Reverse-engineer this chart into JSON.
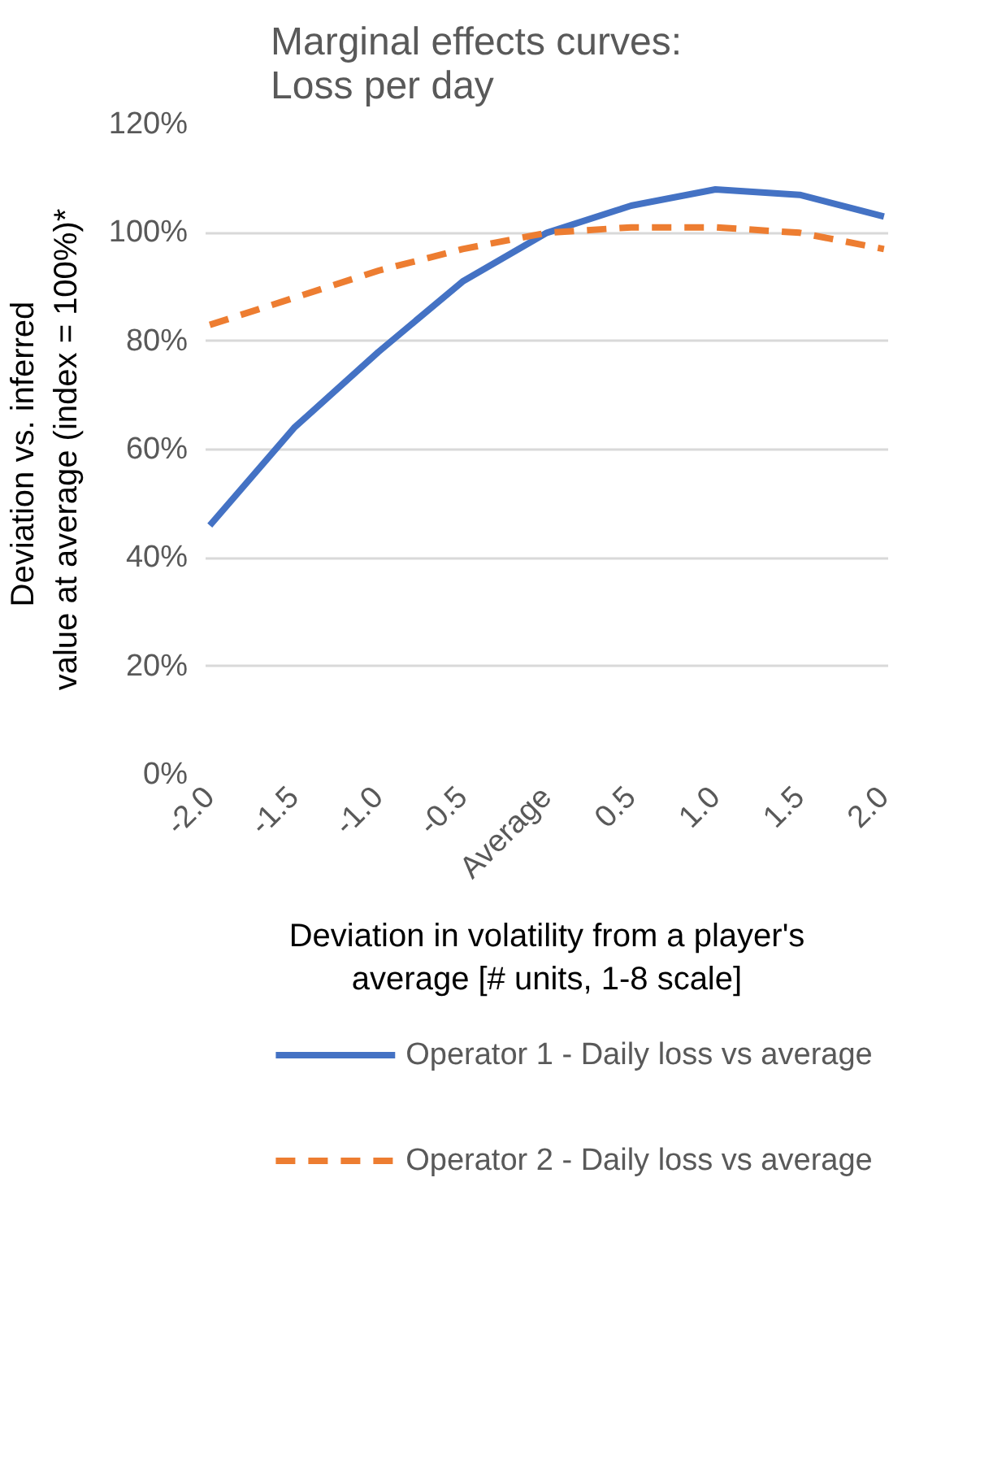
{
  "chart_data": {
    "type": "line",
    "title": "Marginal effects curves:\nLoss per day",
    "xlabel": "Deviation in volatility from a player's\naverage [# units, 1-8 scale]",
    "ylabel": "Deviation  vs. inferred\nvalue at average (index = 100%)*",
    "categories": [
      "-2.0",
      "-1.5",
      "-1.0",
      "-0.5",
      "Average",
      "0.5",
      "1.0",
      "1.5",
      "2.0"
    ],
    "series": [
      {
        "name": "Operator 1 - Daily loss vs average",
        "color": "#4472c4",
        "line_style": "solid",
        "values": [
          46,
          64,
          78,
          91,
          100,
          105,
          108,
          107,
          103
        ]
      },
      {
        "name": "Operator 2 - Daily loss vs average",
        "color": "#ed7d31",
        "line_style": "dashed",
        "values": [
          83,
          88,
          93,
          97,
          100,
          101,
          101,
          100,
          97
        ]
      }
    ],
    "ylim": [
      0,
      120
    ],
    "yticks": [
      {
        "value": 0,
        "label": "0%"
      },
      {
        "value": 20,
        "label": "20%"
      },
      {
        "value": 40,
        "label": "40%"
      },
      {
        "value": 60,
        "label": "60%"
      },
      {
        "value": 80,
        "label": "80%"
      },
      {
        "value": 100,
        "label": "100%"
      },
      {
        "value": 120,
        "label": "120%"
      }
    ],
    "grid": "y",
    "legend": "bottom",
    "marker": "none"
  }
}
